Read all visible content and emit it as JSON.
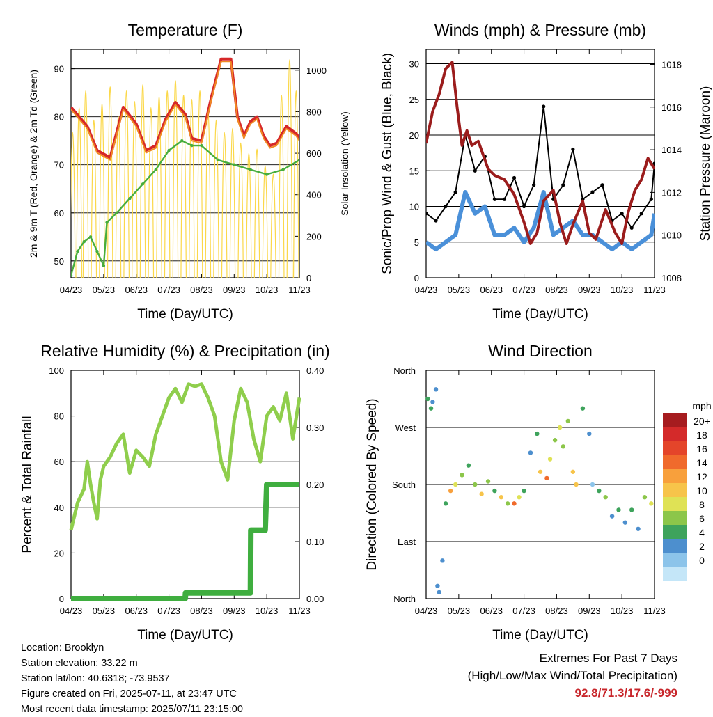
{
  "chart_data": [
    {
      "id": "temperature",
      "type": "line",
      "title": "Temperature (F)",
      "xlabel": "Time (Day/UTC)",
      "ylabel": "2m & 9m T (Red, Orange) & 2m Td (Green)",
      "ylabel_right": "Solar Insolation (Yellow)",
      "x_ticks": [
        "04/23",
        "05/23",
        "06/23",
        "07/23",
        "08/23",
        "09/23",
        "10/23",
        "11/23"
      ],
      "ylim": [
        46.5,
        94
      ],
      "y_ticks": [
        50,
        60,
        70,
        80,
        90
      ],
      "ylim_right": [
        0,
        1100
      ],
      "y_ticks_right": [
        0,
        200,
        400,
        600,
        800,
        1000
      ],
      "series": [
        {
          "color": "#d62728",
          "x": [
            0,
            0.5,
            0.8,
            1.2,
            1.6,
            2,
            2.3,
            2.6,
            2.9,
            3.2,
            3.5,
            3.7,
            4,
            4.3,
            4.6,
            4.9,
            5.1,
            5.3,
            5.5,
            5.7,
            5.9,
            6.1,
            6.3,
            6.6,
            6.9,
            7
          ],
          "y": [
            82,
            78,
            73,
            71.5,
            82,
            78.5,
            73,
            74,
            79.5,
            83,
            80.5,
            75.5,
            75,
            84,
            92,
            92,
            80,
            76,
            79,
            80,
            76,
            74,
            74.5,
            78,
            76.5,
            75.5
          ]
        },
        {
          "color": "#f08a24",
          "x": [
            0,
            0.5,
            0.8,
            1.2,
            1.6,
            2,
            2.3,
            2.6,
            2.9,
            3.2,
            3.5,
            3.7,
            4,
            4.3,
            4.6,
            4.9,
            5.1,
            5.3,
            5.5,
            5.7,
            5.9,
            6.1,
            6.3,
            6.6,
            6.9,
            7
          ],
          "y": [
            81.5,
            77.5,
            72.5,
            71,
            81.5,
            78,
            72.5,
            73.5,
            79,
            82.5,
            80,
            75,
            74.5,
            83.5,
            91.5,
            91.5,
            79.5,
            75.5,
            78.5,
            79.5,
            75.5,
            73.5,
            74,
            77.5,
            76,
            75
          ]
        },
        {
          "color": "#47ad3d",
          "x": [
            0,
            0.2,
            0.4,
            0.6,
            0.8,
            1.0,
            1.1,
            1.4,
            1.8,
            2.2,
            2.6,
            3.0,
            3.4,
            3.7,
            4,
            4.5,
            5,
            5.5,
            6,
            6.5,
            7
          ],
          "y": [
            47,
            52,
            54,
            55,
            52,
            49,
            58,
            60,
            63,
            66,
            69,
            73,
            75,
            74,
            74,
            71,
            70,
            69,
            68,
            69,
            71
          ]
        }
      ],
      "series_right": [
        {
          "color": "#fbd84a",
          "note": "daily cycle",
          "x": [
            0.05,
            0.25,
            0.45,
            0.7,
            0.95,
            1.2,
            1.45,
            1.7,
            1.95,
            2.2,
            2.45,
            2.7,
            2.95,
            3.2,
            3.45,
            3.7,
            3.95,
            4.2,
            4.45,
            4.7,
            4.95,
            5.2,
            5.45,
            5.7,
            5.95,
            6.2,
            6.45,
            6.7,
            6.9
          ],
          "peaks": [
            700,
            820,
            900,
            760,
            840,
            920,
            780,
            900,
            850,
            930,
            820,
            870,
            900,
            950,
            880,
            860,
            900,
            800,
            760,
            700,
            720,
            650,
            600,
            620,
            540,
            500,
            880,
            1050,
            900
          ]
        }
      ]
    },
    {
      "id": "winds",
      "type": "scatter",
      "title": "Winds (mph) & Pressure (mb)",
      "xlabel": "Time (Day/UTC)",
      "ylabel": "Sonic/Prop Wind & Gust (Blue, Black)",
      "ylabel_right": "Station Pressure (Maroon)",
      "x_ticks": [
        "04/23",
        "05/23",
        "06/23",
        "07/23",
        "08/23",
        "09/23",
        "10/23",
        "11/23"
      ],
      "ylim": [
        0,
        32
      ],
      "y_ticks": [
        0,
        5,
        10,
        15,
        20,
        25,
        30
      ],
      "ylim_right": [
        1008,
        1018.7
      ],
      "y_ticks_right": [
        1008,
        1010,
        1012,
        1014,
        1016,
        1018
      ],
      "series": [
        {
          "color": "#4a90d9",
          "x": [
            0,
            0.3,
            0.6,
            0.9,
            1.2,
            1.5,
            1.8,
            2.1,
            2.4,
            2.7,
            3,
            3.3,
            3.6,
            3.9,
            4.2,
            4.5,
            4.8,
            5.1,
            5.4,
            5.7,
            6,
            6.3,
            6.6,
            6.9,
            7
          ],
          "y": [
            5,
            4,
            5,
            6,
            12,
            9,
            10,
            6,
            6,
            7,
            5,
            7,
            12,
            6,
            7,
            8,
            6,
            6,
            5,
            4,
            5,
            4,
            5,
            6,
            9
          ]
        },
        {
          "color": "#000000",
          "x": [
            0,
            0.3,
            0.6,
            0.9,
            1.2,
            1.5,
            1.8,
            2.1,
            2.4,
            2.7,
            3,
            3.3,
            3.6,
            3.9,
            4.2,
            4.5,
            4.8,
            5.1,
            5.4,
            5.7,
            6,
            6.3,
            6.6,
            6.9,
            7
          ],
          "y": [
            9,
            8,
            10,
            12,
            20,
            15,
            17,
            11,
            11,
            14,
            10,
            13,
            24,
            11,
            13,
            18,
            11,
            12,
            13,
            8,
            9,
            7,
            9,
            11,
            16
          ]
        }
      ],
      "series_right": [
        {
          "color": "#9b1c1c",
          "x": [
            0,
            0.2,
            0.4,
            0.6,
            0.8,
            0.95,
            1.1,
            1.25,
            1.4,
            1.6,
            1.9,
            2.1,
            2.4,
            2.7,
            3,
            3.2,
            3.4,
            3.6,
            3.9,
            4.1,
            4.3,
            4.5,
            4.8,
            5,
            5.2,
            5.5,
            5.8,
            6,
            6.2,
            6.4,
            6.6,
            6.8,
            7
          ],
          "y": [
            1014.3,
            1015.8,
            1016.6,
            1017.8,
            1018.1,
            1016,
            1014.2,
            1014.9,
            1014.2,
            1014.4,
            1013.1,
            1012.8,
            1012.6,
            1011.9,
            1010.6,
            1009.6,
            1010.1,
            1011.6,
            1012.1,
            1010.6,
            1009.6,
            1010.5,
            1011.6,
            1010.1,
            1009.8,
            1011.2,
            1010.1,
            1009.6,
            1011.1,
            1012.1,
            1012.6,
            1013.6,
            1013.1
          ]
        }
      ]
    },
    {
      "id": "humidity",
      "type": "line",
      "title": "Relative Humidity (%) & Precipitation (in)",
      "xlabel": "Time (Day/UTC)",
      "ylabel": "Percent & Total Rainfall",
      "x_ticks": [
        "04/23",
        "05/23",
        "06/23",
        "07/23",
        "08/23",
        "09/23",
        "10/23",
        "11/23"
      ],
      "ylim": [
        0,
        100
      ],
      "y_ticks": [
        0,
        20,
        40,
        60,
        80,
        100
      ],
      "ylim_right": [
        0,
        0.4
      ],
      "y_ticks_right": [
        "0.00",
        "0.10",
        "0.20",
        "0.30",
        "0.40"
      ],
      "series": [
        {
          "color": "#8fce4c",
          "x": [
            0,
            0.2,
            0.4,
            0.5,
            0.6,
            0.7,
            0.8,
            0.9,
            1.0,
            1.2,
            1.4,
            1.6,
            1.8,
            2.0,
            2.2,
            2.4,
            2.6,
            2.8,
            3.0,
            3.2,
            3.4,
            3.6,
            3.8,
            4.0,
            4.2,
            4.4,
            4.6,
            4.8,
            5.0,
            5.2,
            5.4,
            5.6,
            5.8,
            6.0,
            6.2,
            6.4,
            6.6,
            6.8,
            7
          ],
          "y": [
            30,
            42,
            48,
            60,
            50,
            42,
            35,
            52,
            58,
            62,
            68,
            72,
            55,
            65,
            62,
            58,
            72,
            80,
            88,
            92,
            86,
            94,
            93,
            94,
            88,
            80,
            60,
            52,
            78,
            92,
            86,
            70,
            60,
            80,
            84,
            78,
            90,
            70,
            88
          ]
        }
      ],
      "series_right": [
        {
          "color": "#3fae3f",
          "x": [
            0,
            3.5,
            3.51,
            5.5,
            5.51,
            5.95,
            6.0,
            6.2,
            7
          ],
          "y": [
            0,
            0,
            0.01,
            0.01,
            0.12,
            0.12,
            0.2,
            0.2,
            0.2
          ]
        }
      ]
    },
    {
      "id": "direction",
      "type": "scatter",
      "title": "Wind Direction",
      "xlabel": "Time (Day/UTC)",
      "ylabel": "Direction (Colored By Speed)",
      "x_ticks": [
        "04/23",
        "05/23",
        "06/23",
        "07/23",
        "08/23",
        "09/23",
        "10/23",
        "11/23"
      ],
      "y_ticks": [
        "North",
        "East",
        "South",
        "West",
        "North"
      ],
      "ylim": [
        0,
        360
      ],
      "legend_title": "mph",
      "legend_labels": [
        "20+",
        "18",
        "16",
        "14",
        "12",
        "10",
        "8",
        "6",
        "4",
        "2",
        "0"
      ],
      "legend_colors": [
        "#a61c1f",
        "#d42a2a",
        "#e4452a",
        "#f06a2c",
        "#f8a03c",
        "#f7c44a",
        "#dfe255",
        "#8cc64a",
        "#3ea35c",
        "#4d8fce",
        "#8cc4ea",
        "#c4e6f8"
      ],
      "points": [
        {
          "x": 0.05,
          "y": 315,
          "s": 5
        },
        {
          "x": 0.15,
          "y": 300,
          "s": 6
        },
        {
          "x": 0.2,
          "y": 310,
          "s": 4
        },
        {
          "x": 0.3,
          "y": 330,
          "s": 3
        },
        {
          "x": 0.35,
          "y": 20,
          "s": 3
        },
        {
          "x": 0.4,
          "y": 10,
          "s": 4
        },
        {
          "x": 0.5,
          "y": 60,
          "s": 3
        },
        {
          "x": 0.6,
          "y": 150,
          "s": 5
        },
        {
          "x": 0.75,
          "y": 170,
          "s": 14
        },
        {
          "x": 0.9,
          "y": 180,
          "s": 10
        },
        {
          "x": 1.1,
          "y": 195,
          "s": 8
        },
        {
          "x": 1.3,
          "y": 210,
          "s": 6
        },
        {
          "x": 1.5,
          "y": 180,
          "s": 8
        },
        {
          "x": 1.7,
          "y": 165,
          "s": 12
        },
        {
          "x": 1.9,
          "y": 185,
          "s": 8
        },
        {
          "x": 2.1,
          "y": 170,
          "s": 6
        },
        {
          "x": 2.3,
          "y": 160,
          "s": 12
        },
        {
          "x": 2.5,
          "y": 150,
          "s": 7
        },
        {
          "x": 2.7,
          "y": 150,
          "s": 15
        },
        {
          "x": 2.85,
          "y": 160,
          "s": 10
        },
        {
          "x": 3.0,
          "y": 170,
          "s": 6
        },
        {
          "x": 3.2,
          "y": 230,
          "s": 4
        },
        {
          "x": 3.4,
          "y": 260,
          "s": 6
        },
        {
          "x": 3.5,
          "y": 200,
          "s": 12
        },
        {
          "x": 3.7,
          "y": 190,
          "s": 16
        },
        {
          "x": 3.8,
          "y": 220,
          "s": 9
        },
        {
          "x": 3.95,
          "y": 250,
          "s": 8
        },
        {
          "x": 4.1,
          "y": 270,
          "s": 10
        },
        {
          "x": 4.2,
          "y": 240,
          "s": 7
        },
        {
          "x": 4.35,
          "y": 280,
          "s": 8
        },
        {
          "x": 4.5,
          "y": 200,
          "s": 11
        },
        {
          "x": 4.6,
          "y": 180,
          "s": 12
        },
        {
          "x": 4.8,
          "y": 300,
          "s": 5
        },
        {
          "x": 5.0,
          "y": 260,
          "s": 3
        },
        {
          "x": 5.1,
          "y": 180,
          "s": 2
        },
        {
          "x": 5.3,
          "y": 170,
          "s": 6
        },
        {
          "x": 5.5,
          "y": 160,
          "s": 7
        },
        {
          "x": 5.7,
          "y": 130,
          "s": 4
        },
        {
          "x": 5.9,
          "y": 140,
          "s": 5
        },
        {
          "x": 6.1,
          "y": 120,
          "s": 4
        },
        {
          "x": 6.3,
          "y": 140,
          "s": 6
        },
        {
          "x": 6.5,
          "y": 110,
          "s": 4
        },
        {
          "x": 6.7,
          "y": 160,
          "s": 8
        },
        {
          "x": 6.9,
          "y": 150,
          "s": 10
        }
      ]
    }
  ],
  "station": {
    "location": "Location: Brooklyn",
    "elevation": "Station elevation: 33.22 m",
    "latlon": "Station lat/lon: 40.6318; -73.9537",
    "created": "Figure created on Fri, 2025-07-11, at 23:47 UTC",
    "timestamp": "Most recent data timestamp: 2025/07/11 23:15:00"
  },
  "extremes": {
    "title": "Extremes For Past 7 Days",
    "subtitle": "(High/Low/Max Wind/Total Precipitation)",
    "values": "92.8/71.3/17.6/-999"
  }
}
